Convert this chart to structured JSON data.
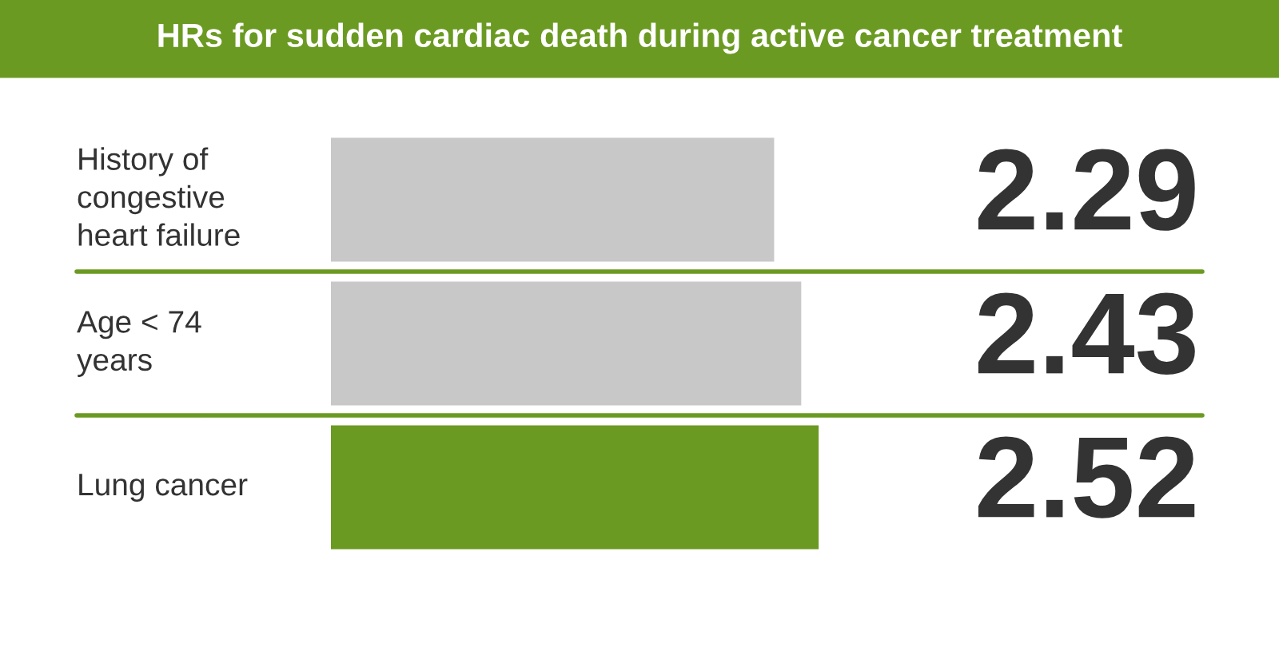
{
  "chart_data": {
    "type": "bar",
    "orientation": "horizontal",
    "title": "HRs for sudden cardiac death during active cancer treatment",
    "categories": [
      "History of\ncongestive\nheart failure",
      "Age < 74\nyears",
      "Lung cancer"
    ],
    "values": [
      2.29,
      2.43,
      2.52
    ],
    "colors": [
      "#c8c8c8",
      "#c8c8c8",
      "#6b9a22"
    ],
    "data_labels": true
  }
}
